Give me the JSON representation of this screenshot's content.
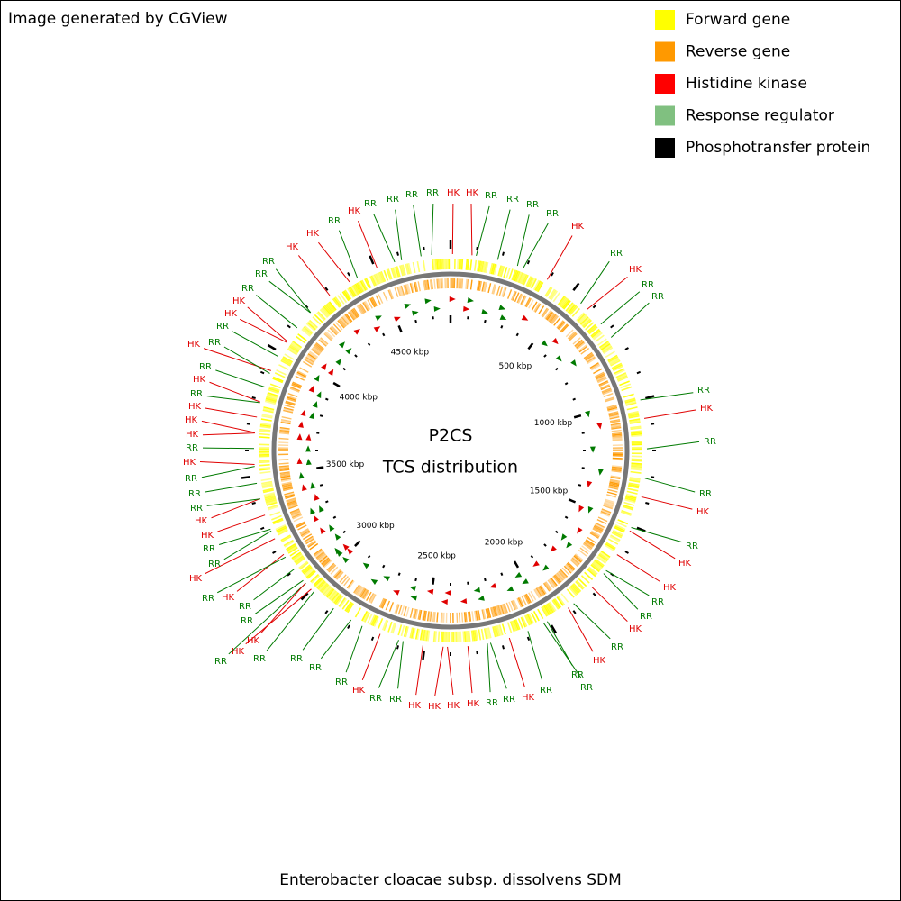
{
  "credit": "Image generated by CGView",
  "legend": [
    {
      "label": "Forward gene",
      "color": "#ffff00"
    },
    {
      "label": "Reverse gene",
      "color": "#ff9900"
    },
    {
      "label": "Histidine kinase",
      "color": "#ff0000"
    },
    {
      "label": "Response regulator",
      "color": "#80c080"
    },
    {
      "label": "Phosphotransfer protein",
      "color": "#000000"
    }
  ],
  "center": {
    "title": "P2CS",
    "subtitle": "TCS distribution"
  },
  "ruler_labels": [
    "500 kbp",
    "1000 kbp",
    "1500 kbp",
    "2000 kbp",
    "2500 kbp",
    "3000 kbp",
    "3500 kbp",
    "4000 kbp",
    "4500 kbp"
  ],
  "label_colors": {
    "HK": "#e00000",
    "RR": "#007a00"
  },
  "feature_labels": [
    "RR",
    "HK",
    "HK",
    "RR",
    "RR",
    "RR",
    "RR",
    "HK",
    "RR",
    "HK",
    "RR",
    "RR",
    "RR",
    "HK",
    "RR",
    "RR",
    "HK",
    "RR",
    "HK",
    "HK",
    "RR",
    "RR",
    "HK",
    "RR",
    "HK",
    "RR",
    "RR",
    "RR",
    "HK",
    "RR",
    "RR",
    "HK",
    "HK",
    "HK",
    "HK",
    "RR",
    "RR",
    "HK",
    "RR",
    "RR",
    "RR",
    "RR",
    "HK",
    "RR",
    "HK",
    "RR",
    "RR",
    "HK",
    "RR",
    "HK",
    "RR",
    "RR",
    "HK",
    "HK",
    "RR",
    "RR",
    "RR",
    "HK",
    "RR",
    "HK",
    "HK",
    "HK",
    "RR",
    "HK",
    "RR",
    "HK",
    "RR",
    "RR",
    "HK",
    "HK",
    "RR",
    "RR",
    "RR",
    "HK",
    "HK",
    "RR",
    "HK",
    "RR",
    "RR",
    "RR"
  ],
  "footer": "Enterobacter cloacae subsp. dissolvens SDM"
}
